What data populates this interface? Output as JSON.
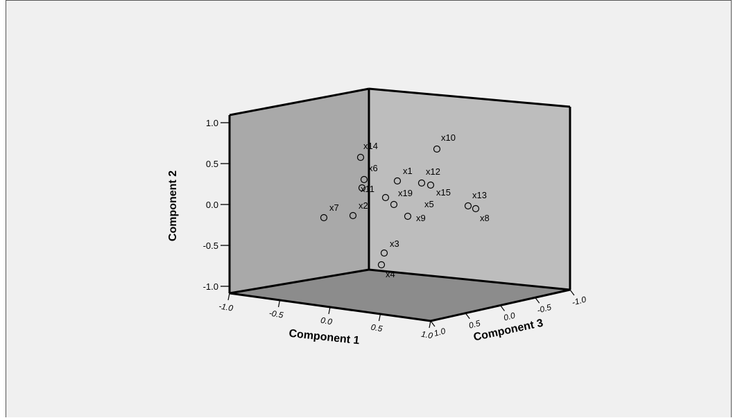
{
  "chart_data": {
    "type": "scatter",
    "subtype": "3d-scatter",
    "axes": {
      "x": {
        "label": "Component 1",
        "range": [
          -1.0,
          1.0
        ],
        "ticks": [
          "-1.0-",
          "-0.5-",
          "0.0",
          "0.5",
          "1.0"
        ]
      },
      "y": {
        "label": "Component 2",
        "range": [
          -1.0,
          1.0
        ],
        "ticks": [
          "1.0-",
          "0.5-",
          "0.0-",
          "-0.5-",
          "-1.0-"
        ]
      },
      "z": {
        "label": "Component 3",
        "range": [
          -1.0,
          1.0
        ],
        "ticks": [
          "1.0",
          "0.5",
          "0.0",
          "-0.5-",
          "-1.0-"
        ]
      }
    },
    "points": [
      {
        "label": "x14",
        "x": 0.05,
        "y": 0.58,
        "z": 1.0
      },
      {
        "label": "x10",
        "x": 0.72,
        "y": 0.72,
        "z": 0.3
      },
      {
        "label": "x6",
        "x": 0.05,
        "y": 0.34,
        "z": 1.0
      },
      {
        "label": "x1",
        "x": 0.45,
        "y": 0.3,
        "z": 0.75
      },
      {
        "label": "x12",
        "x": 0.65,
        "y": 0.3,
        "z": 0.6
      },
      {
        "label": "x11",
        "x": 0.08,
        "y": 0.3,
        "z": 1.0
      },
      {
        "label": "x19",
        "x": 0.3,
        "y": 0.06,
        "z": 0.9
      },
      {
        "label": "x15",
        "x": 0.6,
        "y": 0.2,
        "z": 0.5
      },
      {
        "label": "x13",
        "x": 0.85,
        "y": 0.1,
        "z": -0.2
      },
      {
        "label": "x2",
        "x": -0.2,
        "y": -0.12,
        "z": 1.0
      },
      {
        "label": "x7",
        "x": -0.6,
        "y": -0.15,
        "z": 1.0
      },
      {
        "label": "x5",
        "x": 0.35,
        "y": -0.02,
        "z": 0.8
      },
      {
        "label": "x9",
        "x": 0.5,
        "y": -0.15,
        "z": 0.75
      },
      {
        "label": "x8",
        "x": 0.9,
        "y": 0.05,
        "z": -0.3
      },
      {
        "label": "x3",
        "x": 0.3,
        "y": -0.6,
        "z": 1.0
      },
      {
        "label": "x4",
        "x": 0.22,
        "y": -0.75,
        "z": 1.0
      }
    ],
    "colors": {
      "background": "#f0f0f0",
      "back_wall": "#a9a9a9",
      "side_wall": "#bdbdbd",
      "floor": "#8c8c8c",
      "edge": "#000000",
      "marker": "#000000"
    }
  }
}
